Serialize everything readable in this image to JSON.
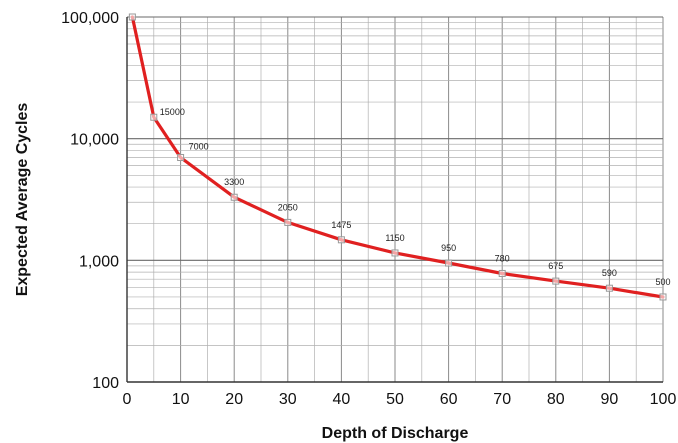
{
  "chart_data": {
    "type": "line",
    "title": "",
    "xlabel": "Depth of Discharge",
    "ylabel": "Expected Average Cycles",
    "x": [
      1,
      5,
      10,
      20,
      30,
      40,
      50,
      60,
      70,
      80,
      90,
      100
    ],
    "series": [
      {
        "values": [
          100000,
          15000,
          7000,
          3300,
          2050,
          1475,
          1150,
          950,
          780,
          675,
          590,
          500
        ],
        "color": "#e02020"
      }
    ],
    "data_labels": [
      "15000",
      "7000",
      "3300",
      "2050",
      "1475",
      "1150",
      "950",
      "780",
      "675",
      "590",
      "500"
    ],
    "xlim": [
      0,
      100
    ],
    "ylim": [
      100,
      100000
    ],
    "y_scale": "log",
    "x_ticks": [
      "0",
      "10",
      "20",
      "30",
      "40",
      "50",
      "60",
      "70",
      "80",
      "90",
      "100"
    ],
    "y_ticks": [
      "100",
      "1,000",
      "10,000",
      "100,000"
    ],
    "grid": true,
    "legend": "none",
    "colors": {
      "line": "#e02020",
      "marker": "#999999",
      "grid": "#b0b0b0",
      "axis": "#333333"
    }
  }
}
